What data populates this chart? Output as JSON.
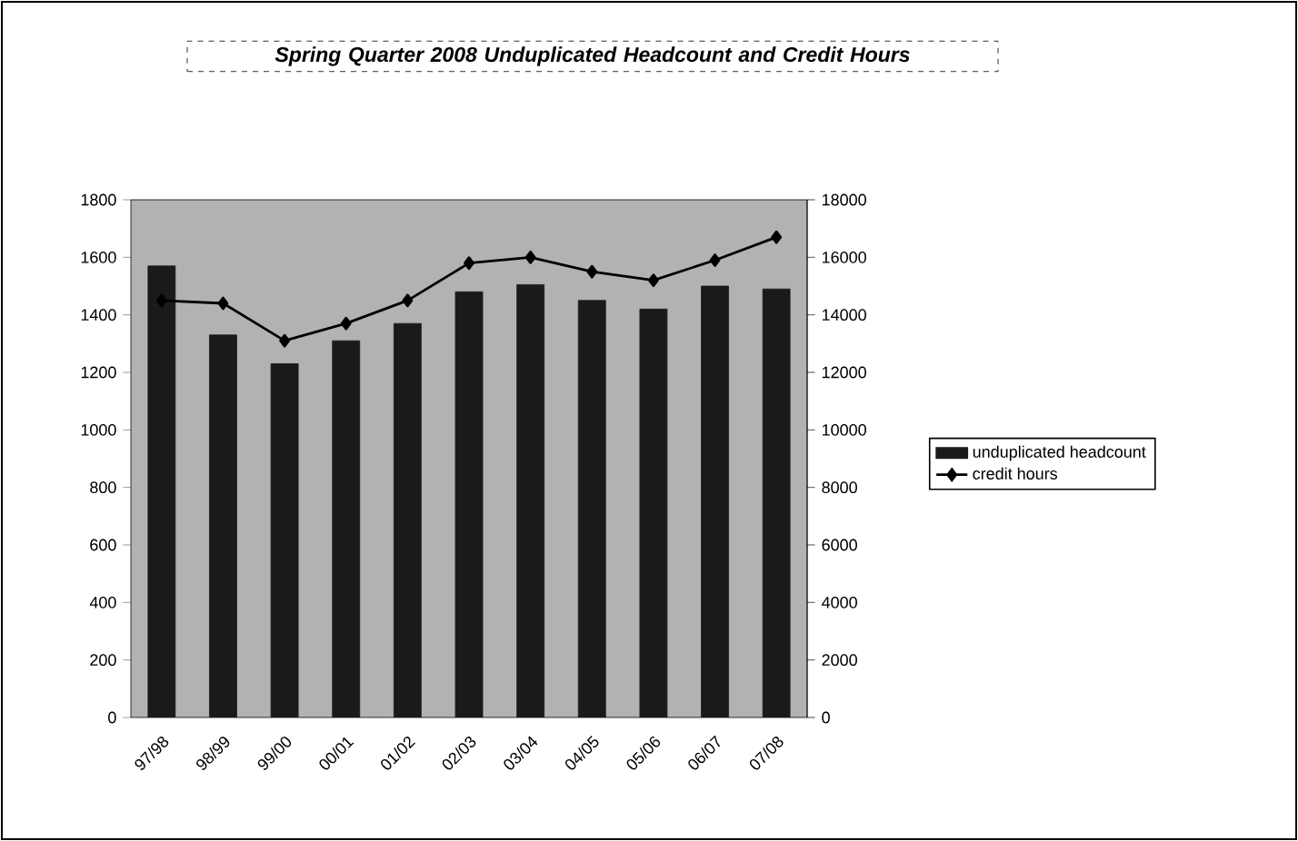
{
  "chart_data": {
    "type": "bar",
    "title": "Spring Quarter 2008 Unduplicated Headcount and Credit Hours",
    "categories": [
      "97/98",
      "98/99",
      "99/00",
      "00/01",
      "01/02",
      "02/03",
      "03/04",
      "04/05",
      "05/06",
      "06/07",
      "07/08"
    ],
    "series": [
      {
        "name": "unduplicated headcount",
        "color": "#1a1a1a",
        "values": [
          1570,
          1330,
          1230,
          1310,
          1370,
          1480,
          1505,
          1450,
          1420,
          1500,
          1490
        ]
      },
      {
        "name": "credit hours",
        "type": "line",
        "axis": "y2",
        "color": "#000000",
        "values": [
          14500,
          14400,
          13100,
          13700,
          14500,
          15800,
          16000,
          15500,
          15200,
          15900,
          16700
        ]
      }
    ],
    "ylim": [
      0,
      1800
    ],
    "yticks": [
      0,
      200,
      400,
      600,
      800,
      1000,
      1200,
      1400,
      1600,
      1800
    ],
    "y2lim": [
      0,
      18000
    ],
    "y2ticks": [
      0,
      2000,
      4000,
      6000,
      8000,
      10000,
      12000,
      14000,
      16000,
      18000
    ],
    "grid": false,
    "legend": "right",
    "marker": "diamond"
  }
}
